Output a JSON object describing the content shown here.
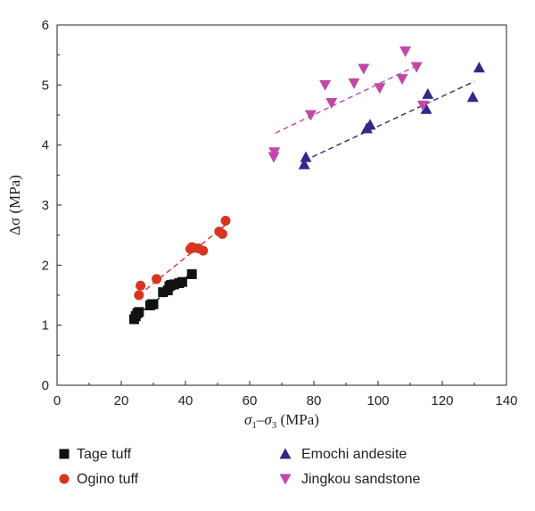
{
  "chart_data": {
    "type": "scatter",
    "xlabel": "σ1–σ3 (MPa)",
    "ylabel": "Δσ (MPa)",
    "xlim": [
      0,
      140
    ],
    "ylim": [
      0,
      6
    ],
    "xticks": [
      "0",
      "20",
      "40",
      "60",
      "80",
      "100",
      "120",
      "140"
    ],
    "yticks": [
      "0",
      "1",
      "2",
      "3",
      "4",
      "5",
      "6"
    ],
    "grid": false,
    "legend_position": "bottom",
    "series": [
      {
        "name": "Tage tuff",
        "marker": "square",
        "color": "#111111",
        "x": [
          24,
          24.5,
          25,
          25.5,
          29,
          29.5,
          30,
          33,
          34.5,
          35,
          35.5,
          36.5,
          38,
          39,
          42
        ],
        "y": [
          1.1,
          1.15,
          1.2,
          1.22,
          1.33,
          1.35,
          1.35,
          1.55,
          1.58,
          1.65,
          1.67,
          1.68,
          1.7,
          1.72,
          1.85
        ],
        "fit": {
          "x": [
            24,
            42
          ],
          "y": [
            1.13,
            1.87
          ]
        }
      },
      {
        "name": "Ogino tuff",
        "marker": "circle",
        "color": "#d9341f",
        "x": [
          25.5,
          26,
          31,
          41.5,
          42,
          42.5,
          44,
          45.5,
          50.5,
          51.5,
          52.5
        ],
        "y": [
          1.5,
          1.66,
          1.77,
          2.27,
          2.3,
          2.29,
          2.28,
          2.24,
          2.56,
          2.52,
          2.74
        ],
        "fit": {
          "x": [
            25.5,
            52.5
          ],
          "y": [
            1.5,
            2.67
          ]
        }
      },
      {
        "name": "Emochi andesite",
        "marker": "triangle-up",
        "color": "#2e2a88",
        "x": [
          77,
          77.5,
          96.5,
          97.5,
          115,
          115.5,
          129.5,
          131.5
        ],
        "y": [
          3.68,
          3.8,
          4.28,
          4.34,
          4.6,
          4.85,
          4.8,
          5.29
        ],
        "fit": {
          "x": [
            77,
            130
          ],
          "y": [
            3.74,
            5.06
          ]
        }
      },
      {
        "name": "Jingkou sandstone",
        "marker": "triangle-down",
        "color": "#c248a8",
        "x": [
          67.5,
          67.7,
          79,
          83.5,
          85.5,
          92.5,
          95.5,
          100.5,
          107.5,
          108.5,
          112,
          114
        ],
        "y": [
          3.8,
          3.88,
          4.5,
          5.0,
          4.7,
          5.03,
          5.27,
          4.95,
          5.1,
          5.56,
          5.3,
          4.66
        ],
        "fit": {
          "x": [
            68,
            112
          ],
          "y": [
            4.2,
            5.32
          ]
        }
      }
    ]
  }
}
